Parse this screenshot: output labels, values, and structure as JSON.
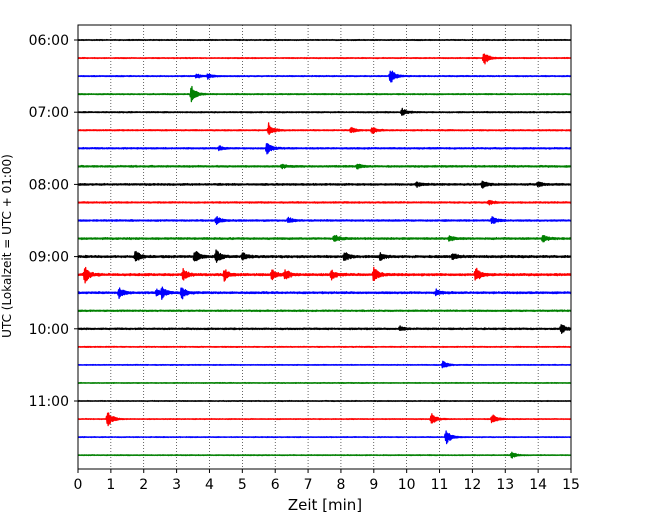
{
  "chart_data": {
    "type": "line",
    "title": "",
    "xlabel": "Zeit  [min]",
    "ylabel": "UTC (Lokalzeit = UTC + 01:00)",
    "xlim": [
      0,
      15
    ],
    "x_ticks": [
      "0",
      "1",
      "2",
      "3",
      "4",
      "5",
      "6",
      "7",
      "8",
      "9",
      "10",
      "11",
      "12",
      "13",
      "14",
      "15"
    ],
    "y_tick_labels": [
      "06:00",
      "07:00",
      "08:00",
      "09:00",
      "10:00",
      "11:00"
    ],
    "grid": "vertical dotted lines at each minute",
    "colors": [
      "#000000",
      "#ff0000",
      "#0000ff",
      "#008000"
    ],
    "row_duration_minutes": 15,
    "rows": [
      {
        "start": "06:00",
        "noise": 0.4,
        "events": []
      },
      {
        "start": "06:15",
        "noise": 0.4,
        "events": [
          {
            "t": 12.35,
            "amp": 1.8
          }
        ]
      },
      {
        "start": "06:30",
        "noise": 0.45,
        "events": [
          {
            "t": 3.6,
            "amp": 0.6
          },
          {
            "t": 3.95,
            "amp": 0.7
          },
          {
            "t": 9.5,
            "amp": 2.0
          }
        ]
      },
      {
        "start": "06:45",
        "noise": 0.45,
        "events": [
          {
            "t": 3.45,
            "amp": 2.2
          }
        ]
      },
      {
        "start": "07:00",
        "noise": 0.5,
        "events": [
          {
            "t": 9.85,
            "amp": 1.0
          }
        ]
      },
      {
        "start": "07:15",
        "noise": 0.5,
        "events": [
          {
            "t": 5.8,
            "amp": 1.8
          },
          {
            "t": 8.3,
            "amp": 0.8
          },
          {
            "t": 8.95,
            "amp": 0.9
          }
        ]
      },
      {
        "start": "07:30",
        "noise": 0.6,
        "events": [
          {
            "t": 5.75,
            "amp": 1.6
          },
          {
            "t": 4.3,
            "amp": 0.6
          }
        ]
      },
      {
        "start": "07:45",
        "noise": 0.7,
        "events": [
          {
            "t": 8.5,
            "amp": 0.6
          },
          {
            "t": 6.2,
            "amp": 0.5
          }
        ]
      },
      {
        "start": "08:00",
        "noise": 0.75,
        "events": [
          {
            "t": 12.3,
            "amp": 1.0
          },
          {
            "t": 10.3,
            "amp": 0.6
          },
          {
            "t": 14.0,
            "amp": 0.6
          }
        ]
      },
      {
        "start": "08:15",
        "noise": 0.6,
        "events": [
          {
            "t": 12.5,
            "amp": 0.6
          }
        ]
      },
      {
        "start": "08:30",
        "noise": 0.65,
        "events": [
          {
            "t": 4.2,
            "amp": 1.1
          },
          {
            "t": 6.4,
            "amp": 0.8
          },
          {
            "t": 12.6,
            "amp": 1.0
          }
        ]
      },
      {
        "start": "08:45",
        "noise": 0.75,
        "events": [
          {
            "t": 7.8,
            "amp": 1.0
          },
          {
            "t": 14.15,
            "amp": 1.0
          },
          {
            "t": 11.3,
            "amp": 0.7
          }
        ]
      },
      {
        "start": "09:00",
        "noise": 0.9,
        "events": [
          {
            "t": 1.75,
            "amp": 1.6
          },
          {
            "t": 3.55,
            "amp": 1.8
          },
          {
            "t": 4.2,
            "amp": 2.0
          },
          {
            "t": 5.0,
            "amp": 1.0
          },
          {
            "t": 8.1,
            "amp": 1.2
          },
          {
            "t": 9.2,
            "amp": 1.0
          },
          {
            "t": 11.4,
            "amp": 1.0
          }
        ]
      },
      {
        "start": "09:15",
        "noise": 0.9,
        "events": [
          {
            "t": 0.2,
            "amp": 2.2
          },
          {
            "t": 3.2,
            "amp": 1.6
          },
          {
            "t": 4.45,
            "amp": 1.6
          },
          {
            "t": 5.9,
            "amp": 1.4
          },
          {
            "t": 6.3,
            "amp": 1.5
          },
          {
            "t": 7.7,
            "amp": 1.4
          },
          {
            "t": 9.0,
            "amp": 2.0
          },
          {
            "t": 12.1,
            "amp": 2.0
          }
        ]
      },
      {
        "start": "09:30",
        "noise": 0.8,
        "events": [
          {
            "t": 1.25,
            "amp": 1.5
          },
          {
            "t": 2.4,
            "amp": 1.0
          },
          {
            "t": 2.55,
            "amp": 1.6
          },
          {
            "t": 3.15,
            "amp": 1.8
          },
          {
            "t": 10.9,
            "amp": 0.8
          }
        ]
      },
      {
        "start": "09:45",
        "noise": 0.6,
        "events": []
      },
      {
        "start": "10:00",
        "noise": 0.65,
        "events": [
          {
            "t": 9.8,
            "amp": 0.6
          },
          {
            "t": 14.7,
            "amp": 1.2
          }
        ]
      },
      {
        "start": "10:15",
        "noise": 0.4,
        "events": []
      },
      {
        "start": "10:30",
        "noise": 0.35,
        "events": [
          {
            "t": 11.1,
            "amp": 1.0
          }
        ]
      },
      {
        "start": "10:45",
        "noise": 0.35,
        "events": []
      },
      {
        "start": "11:00",
        "noise": 0.35,
        "events": []
      },
      {
        "start": "11:15",
        "noise": 0.35,
        "events": [
          {
            "t": 0.9,
            "amp": 2.2
          },
          {
            "t": 10.75,
            "amp": 1.7
          },
          {
            "t": 12.6,
            "amp": 1.2
          }
        ]
      },
      {
        "start": "11:30",
        "noise": 0.35,
        "events": [
          {
            "t": 11.2,
            "amp": 2.0
          }
        ]
      },
      {
        "start": "11:45",
        "noise": 0.35,
        "events": [
          {
            "t": 13.2,
            "amp": 0.8
          }
        ]
      }
    ]
  }
}
